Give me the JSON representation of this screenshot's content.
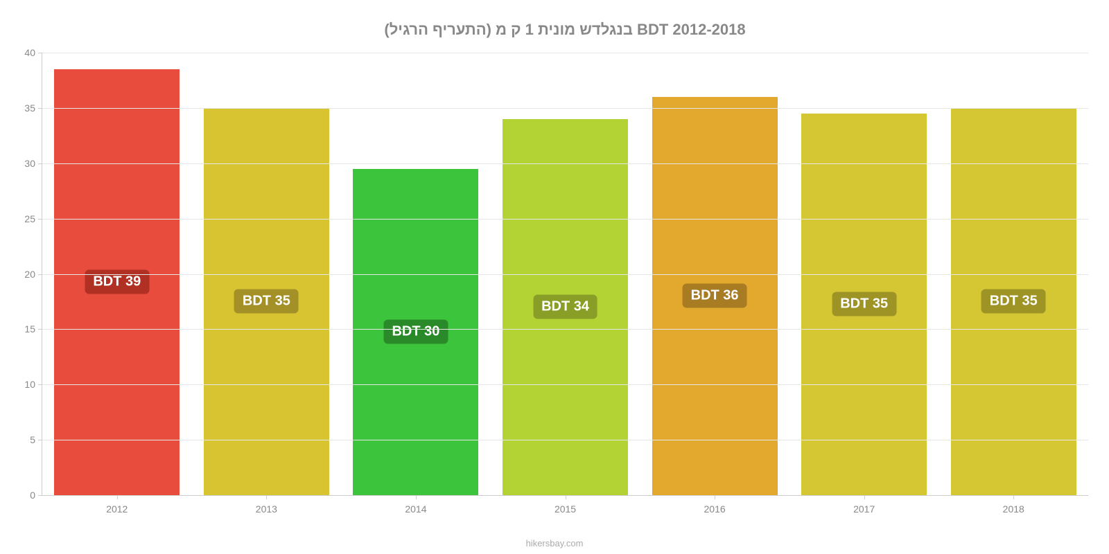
{
  "chart": {
    "type": "bar",
    "title": "בנגלדש מונית 1 ק מ (התעריף הרגיל) BDT 2012-2018",
    "title_color": "#888888",
    "title_fontsize": 22,
    "background_color": "#ffffff",
    "grid_color": "#e6e6e6",
    "axis_color": "#cccccc",
    "tick_label_color": "#888888",
    "tick_label_fontsize": 14,
    "ylim": [
      0,
      40
    ],
    "ytick_step": 5,
    "yticks": [
      0,
      5,
      10,
      15,
      20,
      25,
      30,
      35,
      40
    ],
    "categories": [
      "2012",
      "2013",
      "2014",
      "2015",
      "2016",
      "2017",
      "2018"
    ],
    "values": [
      38.5,
      35,
      29.5,
      34,
      36,
      34.5,
      35
    ],
    "value_labels": [
      "BDT 39",
      "BDT 35",
      "BDT 30",
      "BDT 34",
      "BDT 36",
      "BDT 35",
      "BDT 35"
    ],
    "bar_colors": [
      "#e84c3d",
      "#d8c330",
      "#3dc43d",
      "#b3d334",
      "#e3a92e",
      "#d4c733",
      "#d4c733"
    ],
    "label_bg_colors": [
      "#b03024",
      "#a39127",
      "#2a8a2a",
      "#889e27",
      "#a77c23",
      "#9e9426",
      "#9e9426"
    ],
    "label_text_color": "#ffffff",
    "label_fontsize": 20,
    "bar_width": 0.84,
    "attribution": "hikersbay.com",
    "attribution_color": "#aaaaaa"
  }
}
